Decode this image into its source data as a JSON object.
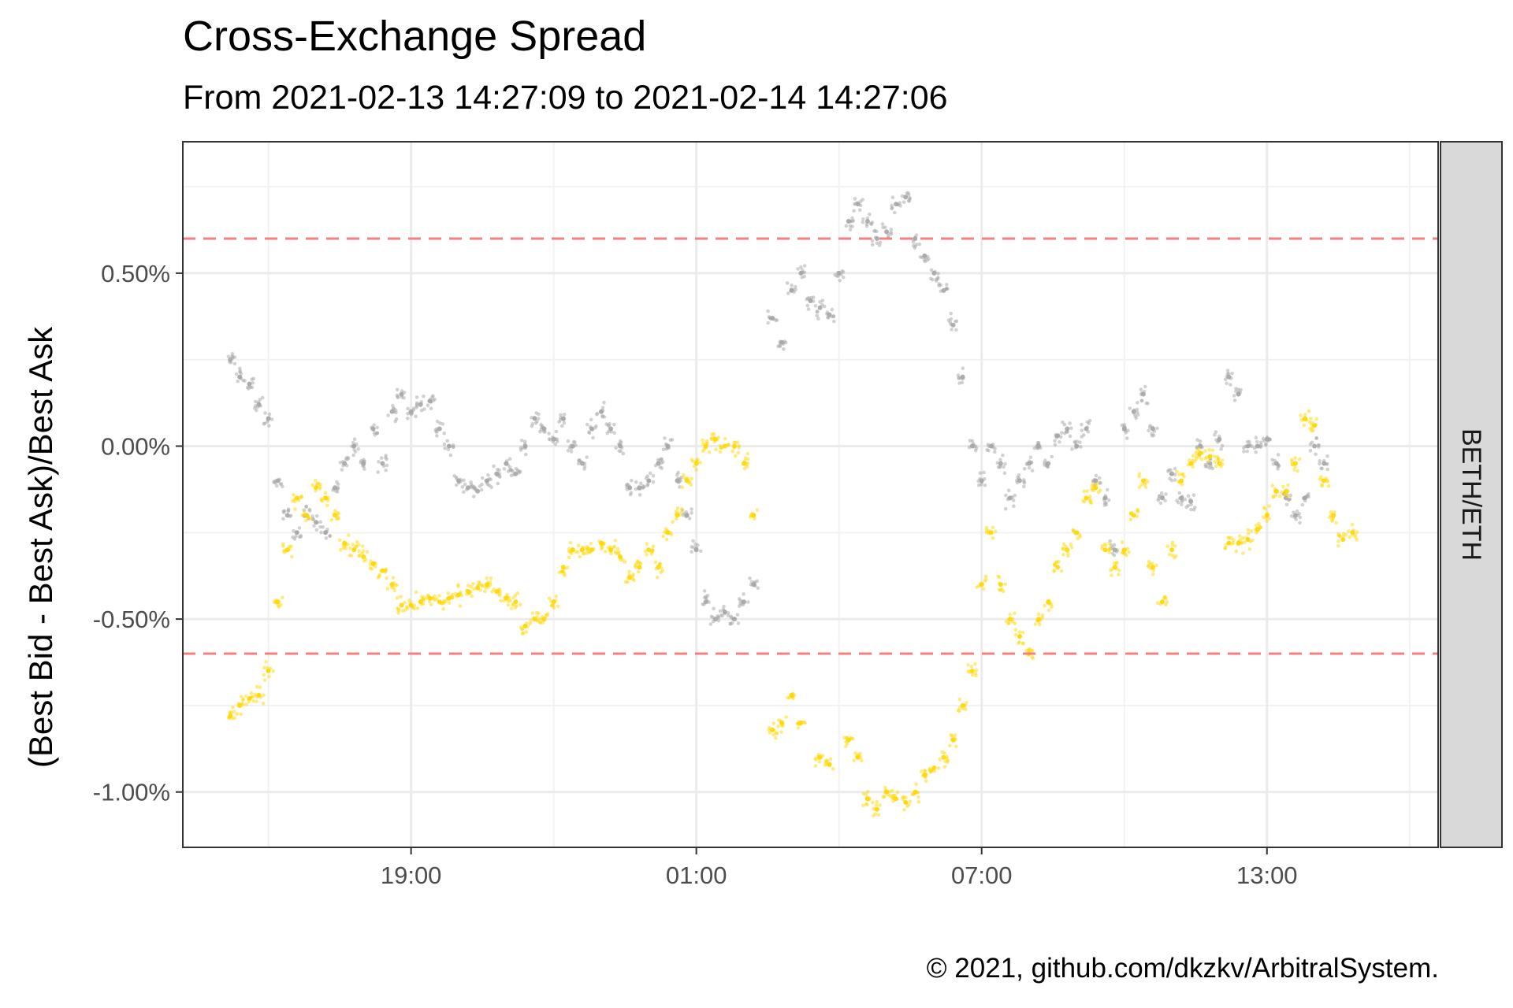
{
  "chart_data": {
    "type": "scatter",
    "title": "Cross-Exchange Spread",
    "subtitle": "From 2021-02-13 14:27:09 to 2021-02-14 14:27:06",
    "ylabel": "(Best Bid - Best Ask)/Best Ask",
    "xlabel": "",
    "caption": "© 2021, github.com/dkzkv/ArbitralSystem.",
    "facet_label": "BETH/ETH",
    "x_unit": "hours since 2021-02-13 00:00",
    "xlim": [
      14.2,
      40.6
    ],
    "ylim": [
      -1.16,
      0.88
    ],
    "x_ticks": [
      {
        "x": 19,
        "label": "19:00"
      },
      {
        "x": 25,
        "label": "01:00"
      },
      {
        "x": 31,
        "label": "07:00"
      },
      {
        "x": 37,
        "label": "13:00"
      }
    ],
    "y_ticks": [
      {
        "y": 0.5,
        "label": "0.50%"
      },
      {
        "y": 0.0,
        "label": "0.00%"
      },
      {
        "y": -0.5,
        "label": "-0.50%"
      },
      {
        "y": -1.0,
        "label": "-1.00%"
      }
    ],
    "reference_lines": [
      {
        "y": 0.6,
        "color": "#f87f7f",
        "style": "dashed"
      },
      {
        "y": -0.6,
        "color": "#f87f7f",
        "style": "dashed"
      }
    ],
    "grid": true,
    "colors": {
      "gray_series": "#a6a6a6",
      "gold_series": "#ffd700",
      "panel_border": "#333333",
      "strip_fill": "#d9d9d9",
      "grid_major": "#ebebeb",
      "grid_minor": "#f2f2f2"
    },
    "series": [
      {
        "color": "gray",
        "points": [
          [
            15.2,
            0.25
          ],
          [
            15.4,
            0.2
          ],
          [
            15.6,
            0.18
          ],
          [
            15.8,
            0.12
          ],
          [
            16.0,
            0.08
          ],
          [
            16.2,
            -0.1
          ],
          [
            16.4,
            -0.2
          ],
          [
            16.6,
            -0.25
          ],
          [
            16.8,
            -0.2
          ],
          [
            17.0,
            -0.22
          ],
          [
            17.2,
            -0.25
          ],
          [
            17.4,
            -0.12
          ],
          [
            17.6,
            -0.05
          ],
          [
            17.8,
            0.0
          ],
          [
            18.0,
            -0.05
          ],
          [
            18.2,
            0.05
          ],
          [
            18.4,
            -0.05
          ],
          [
            18.6,
            0.1
          ],
          [
            18.8,
            0.15
          ],
          [
            19.0,
            0.1
          ],
          [
            19.2,
            0.12
          ],
          [
            19.4,
            0.13
          ],
          [
            19.6,
            0.05
          ],
          [
            19.8,
            0.0
          ],
          [
            20.0,
            -0.1
          ],
          [
            20.2,
            -0.12
          ],
          [
            20.4,
            -0.13
          ],
          [
            20.6,
            -0.1
          ],
          [
            20.8,
            -0.08
          ],
          [
            21.0,
            -0.05
          ],
          [
            21.2,
            -0.08
          ],
          [
            21.4,
            0.0
          ],
          [
            21.6,
            0.08
          ],
          [
            21.8,
            0.05
          ],
          [
            22.0,
            0.02
          ],
          [
            22.2,
            0.08
          ],
          [
            22.4,
            0.0
          ],
          [
            22.6,
            -0.05
          ],
          [
            22.8,
            0.05
          ],
          [
            23.0,
            0.1
          ],
          [
            23.2,
            0.05
          ],
          [
            23.4,
            0.0
          ],
          [
            23.6,
            -0.12
          ],
          [
            23.8,
            -0.12
          ],
          [
            24.0,
            -0.1
          ],
          [
            24.2,
            -0.05
          ],
          [
            24.4,
            0.0
          ],
          [
            24.6,
            -0.1
          ],
          [
            24.8,
            -0.2
          ],
          [
            25.0,
            -0.3
          ],
          [
            25.2,
            -0.45
          ],
          [
            25.4,
            -0.5
          ],
          [
            25.6,
            -0.48
          ],
          [
            25.8,
            -0.5
          ],
          [
            26.0,
            -0.45
          ],
          [
            26.2,
            -0.4
          ],
          [
            26.6,
            0.37
          ],
          [
            26.8,
            0.3
          ],
          [
            27.0,
            0.45
          ],
          [
            27.2,
            0.5
          ],
          [
            27.4,
            0.42
          ],
          [
            27.6,
            0.4
          ],
          [
            27.8,
            0.38
          ],
          [
            28.0,
            0.5
          ],
          [
            28.2,
            0.65
          ],
          [
            28.4,
            0.7
          ],
          [
            28.6,
            0.65
          ],
          [
            28.8,
            0.6
          ],
          [
            29.0,
            0.62
          ],
          [
            29.2,
            0.7
          ],
          [
            29.4,
            0.72
          ],
          [
            29.6,
            0.6
          ],
          [
            29.8,
            0.55
          ],
          [
            30.0,
            0.5
          ],
          [
            30.2,
            0.45
          ],
          [
            30.4,
            0.35
          ],
          [
            30.6,
            0.2
          ],
          [
            30.8,
            0.0
          ],
          [
            31.0,
            -0.1
          ],
          [
            31.2,
            0.0
          ],
          [
            31.4,
            -0.05
          ],
          [
            31.6,
            -0.15
          ],
          [
            31.8,
            -0.1
          ],
          [
            32.0,
            -0.05
          ],
          [
            32.2,
            0.0
          ],
          [
            32.4,
            -0.05
          ],
          [
            32.6,
            0.03
          ],
          [
            32.8,
            0.05
          ],
          [
            33.0,
            0.0
          ],
          [
            33.2,
            0.05
          ],
          [
            33.4,
            -0.1
          ],
          [
            33.6,
            -0.15
          ],
          [
            33.8,
            -0.3
          ],
          [
            34.0,
            0.05
          ],
          [
            34.2,
            0.1
          ],
          [
            34.4,
            0.15
          ],
          [
            34.6,
            0.05
          ],
          [
            34.8,
            -0.15
          ],
          [
            35.0,
            -0.08
          ],
          [
            35.2,
            -0.15
          ],
          [
            35.4,
            -0.16
          ],
          [
            35.6,
            0.0
          ],
          [
            35.8,
            -0.05
          ],
          [
            36.0,
            0.02
          ],
          [
            36.2,
            0.2
          ],
          [
            36.4,
            0.15
          ],
          [
            36.6,
            0.0
          ],
          [
            36.8,
            0.0
          ],
          [
            37.0,
            0.02
          ],
          [
            37.2,
            -0.05
          ],
          [
            37.4,
            -0.15
          ],
          [
            37.6,
            -0.2
          ],
          [
            37.8,
            -0.15
          ],
          [
            38.0,
            0.0
          ],
          [
            38.2,
            -0.05
          ]
        ]
      },
      {
        "color": "gold",
        "points": [
          [
            15.2,
            -0.78
          ],
          [
            15.4,
            -0.75
          ],
          [
            15.6,
            -0.73
          ],
          [
            15.8,
            -0.72
          ],
          [
            16.0,
            -0.65
          ],
          [
            16.2,
            -0.45
          ],
          [
            16.4,
            -0.3
          ],
          [
            16.6,
            -0.15
          ],
          [
            16.8,
            -0.2
          ],
          [
            17.0,
            -0.12
          ],
          [
            17.2,
            -0.15
          ],
          [
            17.4,
            -0.2
          ],
          [
            17.6,
            -0.28
          ],
          [
            17.8,
            -0.3
          ],
          [
            18.0,
            -0.32
          ],
          [
            18.2,
            -0.34
          ],
          [
            18.4,
            -0.36
          ],
          [
            18.6,
            -0.4
          ],
          [
            18.8,
            -0.46
          ],
          [
            19.0,
            -0.46
          ],
          [
            19.2,
            -0.45
          ],
          [
            19.4,
            -0.44
          ],
          [
            19.6,
            -0.45
          ],
          [
            19.8,
            -0.44
          ],
          [
            20.0,
            -0.43
          ],
          [
            20.2,
            -0.42
          ],
          [
            20.4,
            -0.41
          ],
          [
            20.6,
            -0.4
          ],
          [
            20.8,
            -0.42
          ],
          [
            21.0,
            -0.44
          ],
          [
            21.2,
            -0.45
          ],
          [
            21.4,
            -0.52
          ],
          [
            21.6,
            -0.5
          ],
          [
            21.8,
            -0.5
          ],
          [
            22.0,
            -0.45
          ],
          [
            22.2,
            -0.35
          ],
          [
            22.4,
            -0.3
          ],
          [
            22.6,
            -0.3
          ],
          [
            22.8,
            -0.3
          ],
          [
            23.0,
            -0.28
          ],
          [
            23.2,
            -0.3
          ],
          [
            23.4,
            -0.32
          ],
          [
            23.6,
            -0.38
          ],
          [
            23.8,
            -0.35
          ],
          [
            24.0,
            -0.3
          ],
          [
            24.2,
            -0.35
          ],
          [
            24.4,
            -0.25
          ],
          [
            24.6,
            -0.2
          ],
          [
            24.8,
            -0.1
          ],
          [
            25.0,
            -0.05
          ],
          [
            25.2,
            0.0
          ],
          [
            25.4,
            0.02
          ],
          [
            25.6,
            0.0
          ],
          [
            25.8,
            0.0
          ],
          [
            26.0,
            -0.05
          ],
          [
            26.2,
            -0.2
          ],
          [
            26.6,
            -0.82
          ],
          [
            26.8,
            -0.8
          ],
          [
            27.0,
            -0.72
          ],
          [
            27.2,
            -0.8
          ],
          [
            27.6,
            -0.9
          ],
          [
            27.8,
            -0.92
          ],
          [
            28.2,
            -0.85
          ],
          [
            28.4,
            -0.9
          ],
          [
            28.6,
            -1.02
          ],
          [
            28.8,
            -1.05
          ],
          [
            29.0,
            -1.0
          ],
          [
            29.2,
            -1.02
          ],
          [
            29.4,
            -1.03
          ],
          [
            29.6,
            -1.0
          ],
          [
            29.8,
            -0.95
          ],
          [
            30.0,
            -0.93
          ],
          [
            30.2,
            -0.9
          ],
          [
            30.4,
            -0.85
          ],
          [
            30.6,
            -0.75
          ],
          [
            30.8,
            -0.65
          ],
          [
            31.0,
            -0.4
          ],
          [
            31.2,
            -0.25
          ],
          [
            31.4,
            -0.4
          ],
          [
            31.6,
            -0.5
          ],
          [
            31.8,
            -0.55
          ],
          [
            32.0,
            -0.6
          ],
          [
            32.2,
            -0.5
          ],
          [
            32.4,
            -0.45
          ],
          [
            32.6,
            -0.35
          ],
          [
            32.8,
            -0.3
          ],
          [
            33.0,
            -0.25
          ],
          [
            33.2,
            -0.15
          ],
          [
            33.4,
            -0.12
          ],
          [
            33.6,
            -0.3
          ],
          [
            33.8,
            -0.35
          ],
          [
            34.0,
            -0.3
          ],
          [
            34.2,
            -0.2
          ],
          [
            34.4,
            -0.1
          ],
          [
            34.6,
            -0.35
          ],
          [
            34.8,
            -0.45
          ],
          [
            35.0,
            -0.3
          ],
          [
            35.2,
            -0.1
          ],
          [
            35.4,
            -0.05
          ],
          [
            35.6,
            -0.02
          ],
          [
            35.8,
            -0.03
          ],
          [
            36.0,
            -0.05
          ],
          [
            36.2,
            -0.28
          ],
          [
            36.4,
            -0.28
          ],
          [
            36.6,
            -0.27
          ],
          [
            36.8,
            -0.24
          ],
          [
            37.0,
            -0.2
          ],
          [
            37.2,
            -0.13
          ],
          [
            37.4,
            -0.13
          ],
          [
            37.6,
            -0.05
          ],
          [
            37.8,
            0.08
          ],
          [
            38.0,
            0.06
          ],
          [
            38.2,
            -0.1
          ],
          [
            38.4,
            -0.2
          ],
          [
            38.6,
            -0.27
          ],
          [
            38.8,
            -0.25
          ]
        ]
      }
    ]
  }
}
